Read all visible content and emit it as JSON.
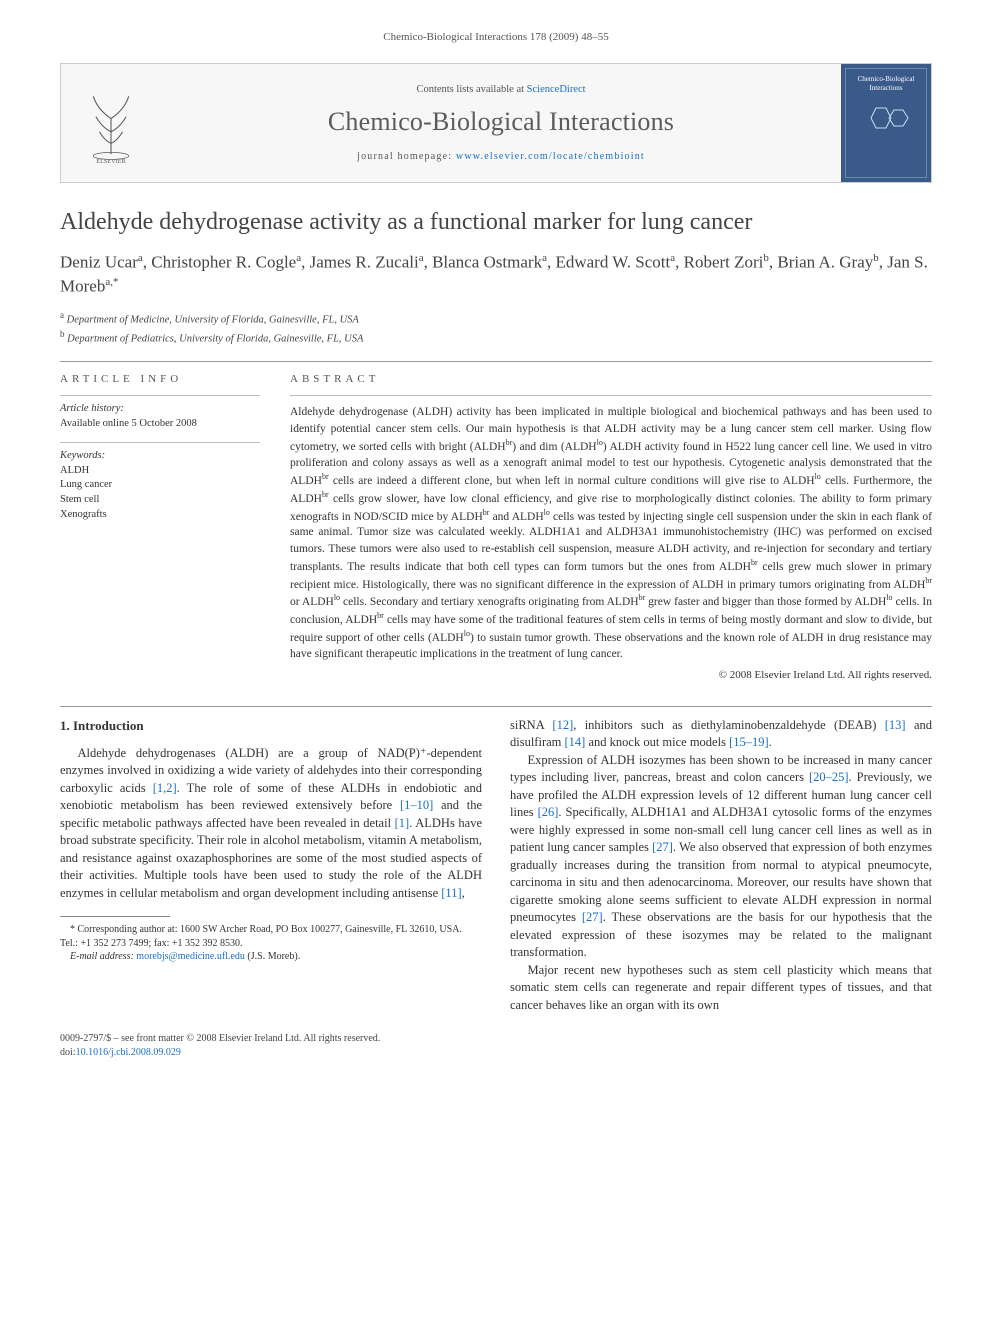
{
  "header": {
    "citation": "Chemico-Biological Interactions 178 (2009) 48–55"
  },
  "banner": {
    "contents_prefix": "Contents lists available at ",
    "contents_link": "ScienceDirect",
    "journal_name": "Chemico-Biological Interactions",
    "homepage_prefix": "journal homepage: ",
    "homepage_url": "www.elsevier.com/locate/chembioint",
    "cover_label": "Chemico-Biological Interactions"
  },
  "article": {
    "title": "Aldehyde dehydrogenase activity as a functional marker for lung cancer",
    "authors_html": "Deniz Ucar<sup>a</sup>, Christopher R. Cogle<sup>a</sup>, James R. Zucali<sup>a</sup>, Blanca Ostmark<sup>a</sup>, Edward W. Scott<sup>a</sup>, Robert Zori<sup>b</sup>, Brian A. Gray<sup>b</sup>, Jan S. Moreb<sup>a,*</sup>",
    "affiliations": [
      {
        "sup": "a",
        "text": "Department of Medicine, University of Florida, Gainesville, FL, USA"
      },
      {
        "sup": "b",
        "text": "Department of Pediatrics, University of Florida, Gainesville, FL, USA"
      }
    ]
  },
  "info": {
    "heading": "ARTICLE INFO",
    "history_label": "Article history:",
    "history_text": "Available online 5 October 2008",
    "keywords_label": "Keywords:",
    "keywords": [
      "ALDH",
      "Lung cancer",
      "Stem cell",
      "Xenografts"
    ]
  },
  "abstract": {
    "heading": "ABSTRACT",
    "text": "Aldehyde dehydrogenase (ALDH) activity has been implicated in multiple biological and biochemical pathways and has been used to identify potential cancer stem cells. Our main hypothesis is that ALDH activity may be a lung cancer stem cell marker. Using flow cytometry, we sorted cells with bright (ALDH<sup>br</sup>) and dim (ALDH<sup>lo</sup>) ALDH activity found in H522 lung cancer cell line. We used in vitro proliferation and colony assays as well as a xenograft animal model to test our hypothesis. Cytogenetic analysis demonstrated that the ALDH<sup>br</sup> cells are indeed a different clone, but when left in normal culture conditions will give rise to ALDH<sup>lo</sup> cells. Furthermore, the ALDH<sup>br</sup> cells grow slower, have low clonal efficiency, and give rise to morphologically distinct colonies. The ability to form primary xenografts in NOD/SCID mice by ALDH<sup>br</sup> and ALDH<sup>lo</sup> cells was tested by injecting single cell suspension under the skin in each flank of same animal. Tumor size was calculated weekly. ALDH1A1 and ALDH3A1 immunohistochemistry (IHC) was performed on excised tumors. These tumors were also used to re-establish cell suspension, measure ALDH activity, and re-injection for secondary and tertiary transplants. The results indicate that both cell types can form tumors but the ones from ALDH<sup>br</sup> cells grew much slower in primary recipient mice. Histologically, there was no significant difference in the expression of ALDH in primary tumors originating from ALDH<sup>br</sup> or ALDH<sup>lo</sup> cells. Secondary and tertiary xenografts originating from ALDH<sup>br</sup> grew faster and bigger than those formed by ALDH<sup>lo</sup> cells. In conclusion, ALDH<sup>br</sup> cells may have some of the traditional features of stem cells in terms of being mostly dormant and slow to divide, but require support of other cells (ALDH<sup>lo</sup>) to sustain tumor growth. These observations and the known role of ALDH in drug resistance may have significant therapeutic implications in the treatment of lung cancer.",
    "copyright": "© 2008 Elsevier Ireland Ltd. All rights reserved."
  },
  "body": {
    "section1_heading": "1. Introduction",
    "p1": "Aldehyde dehydrogenases (ALDH) are a group of NAD(P)⁺-dependent enzymes involved in oxidizing a wide variety of aldehydes into their corresponding carboxylic acids <span class='cite'>[1,2]</span>. The role of some of these ALDHs in endobiotic and xenobiotic metabolism has been reviewed extensively before <span class='cite'>[1–10]</span> and the specific metabolic pathways affected have been revealed in detail <span class='cite'>[1]</span>. ALDHs have broad substrate specificity. Their role in alcohol metabolism, vitamin A metabolism, and resistance against oxazaphosphorines are some of the most studied aspects of their activities. Multiple tools have been used to study the role of the ALDH enzymes in cellular metabolism and organ development including antisense <span class='cite'>[11]</span>,",
    "p2": "siRNA <span class='cite'>[12]</span>, inhibitors such as diethylaminobenzaldehyde (DEAB) <span class='cite'>[13]</span> and disulfiram <span class='cite'>[14]</span> and knock out mice models <span class='cite'>[15–19]</span>.",
    "p3": "Expression of ALDH isozymes has been shown to be increased in many cancer types including liver, pancreas, breast and colon cancers <span class='cite'>[20–25]</span>. Previously, we have profiled the ALDH expression levels of 12 different human lung cancer cell lines <span class='cite'>[26]</span>. Specifically, ALDH1A1 and ALDH3A1 cytosolic forms of the enzymes were highly expressed in some non-small cell lung cancer cell lines as well as in patient lung cancer samples <span class='cite'>[27]</span>. We also observed that expression of both enzymes gradually increases during the transition from normal to atypical pneumocyte, carcinoma in situ and then adenocarcinoma. Moreover, our results have shown that cigarette smoking alone seems sufficient to elevate ALDH expression in normal pneumocytes <span class='cite'>[27]</span>. These observations are the basis for our hypothesis that the elevated expression of these isozymes may be related to the malignant transformation.",
    "p4": "Major recent new hypotheses such as stem cell plasticity which means that somatic stem cells can regenerate and repair different types of tissues, and that cancer behaves like an organ with its own"
  },
  "footnote": {
    "corresponding": "* Corresponding author at: 1600 SW Archer Road, PO Box 100277, Gainesville, FL 32610, USA. Tel.: +1 352 273 7499; fax: +1 352 392 8530.",
    "email_label": "E-mail address:",
    "email": "morebjs@medicine.ufl.edu",
    "email_suffix": "(J.S. Moreb)."
  },
  "footer": {
    "left": "0009-2797/$ – see front matter © 2008 Elsevier Ireland Ltd. All rights reserved.",
    "doi_label": "doi:",
    "doi": "10.1016/j.cbi.2008.09.029"
  },
  "colors": {
    "link": "#1a6fc4",
    "text": "#333333",
    "rule": "#999999",
    "banner_bg": "#f7f7f7",
    "cover_bg": "#3a5a8a"
  }
}
